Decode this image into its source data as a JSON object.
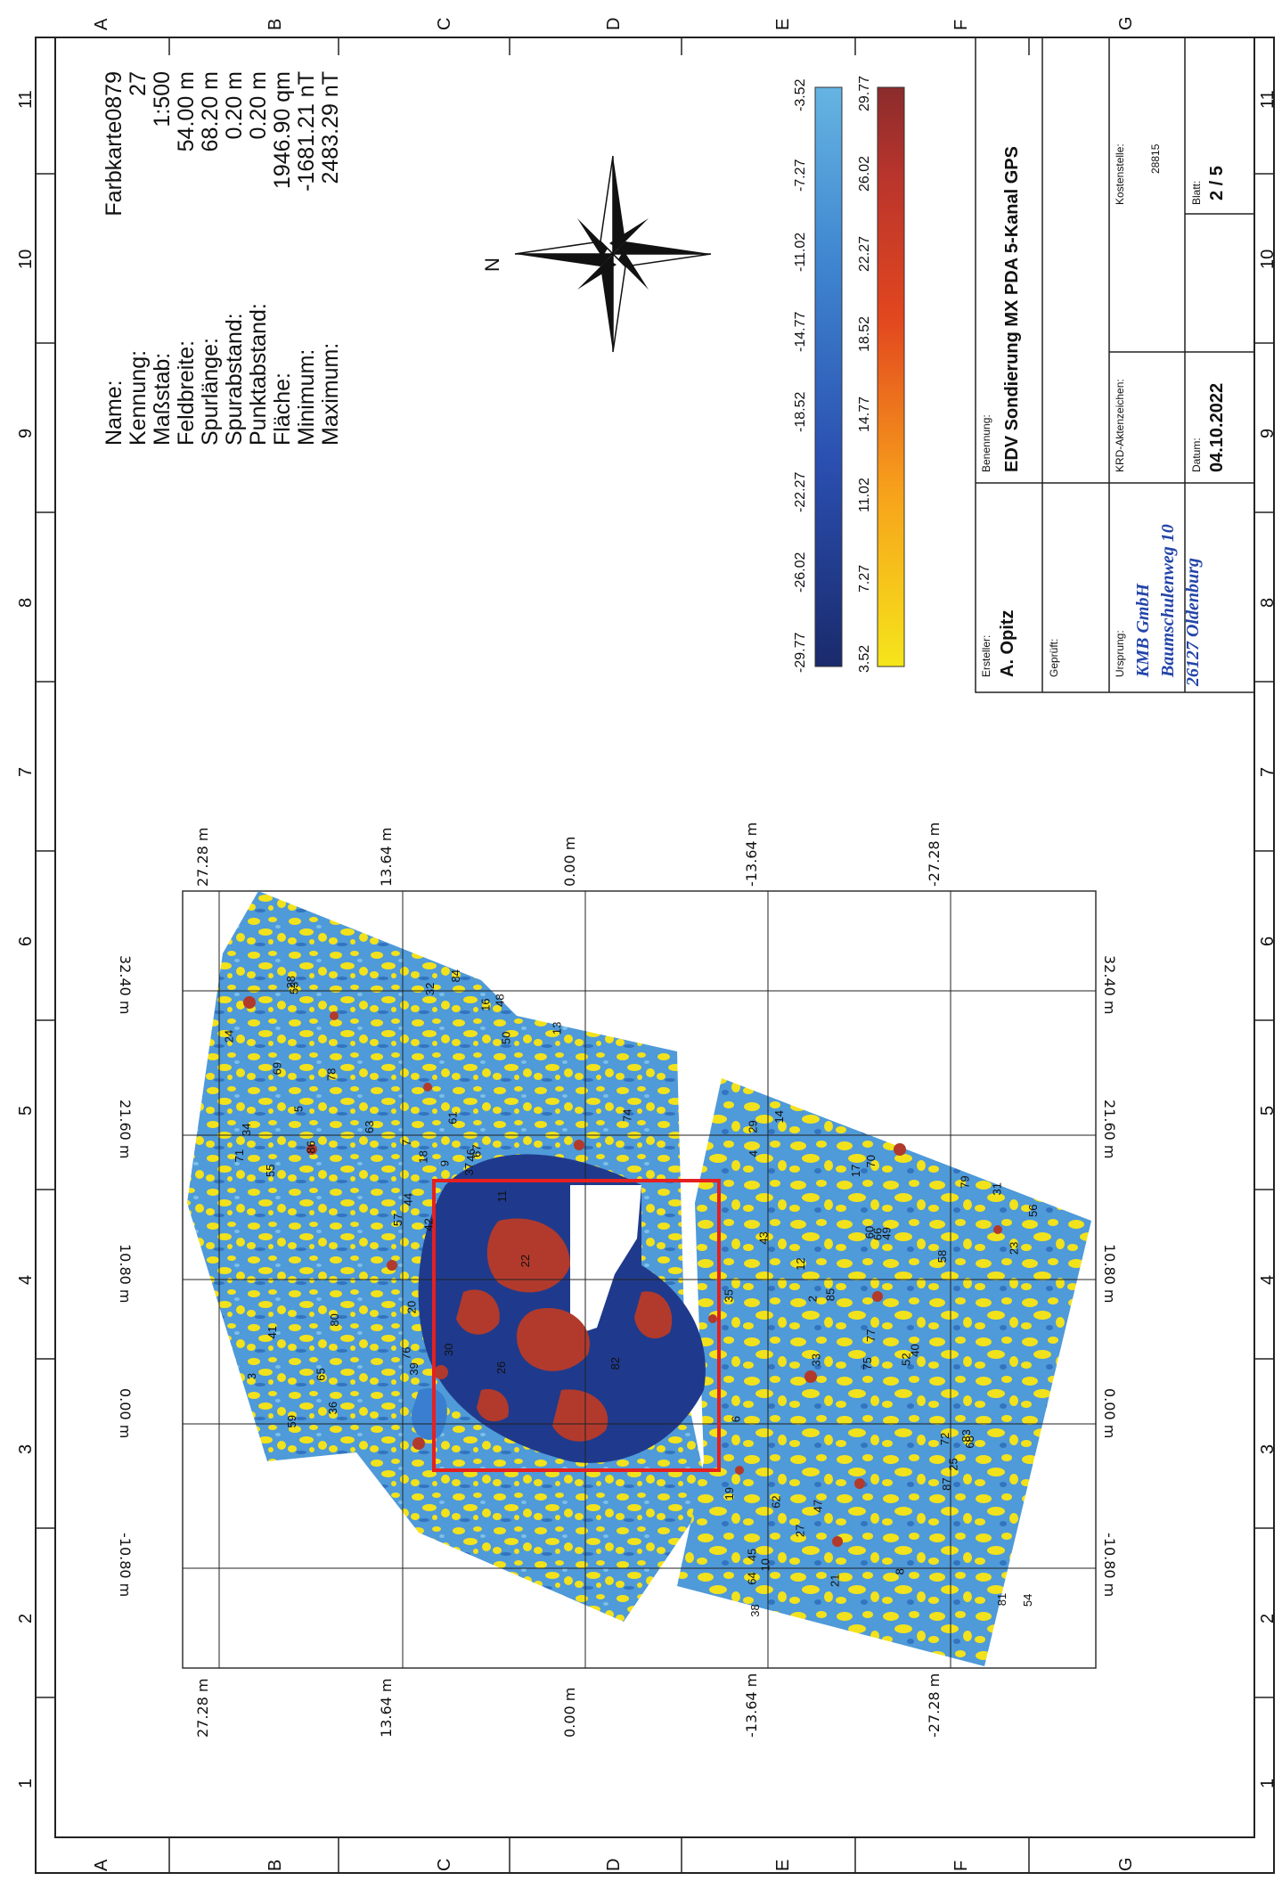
{
  "border": {
    "letters": [
      "A",
      "B",
      "C",
      "D",
      "E",
      "F",
      "G"
    ],
    "numbers": [
      "1",
      "2",
      "3",
      "4",
      "5",
      "6",
      "7",
      "8",
      "9",
      "10",
      "11"
    ]
  },
  "info": {
    "rows": [
      {
        "label": "Name:",
        "value": "Farbkarte0879"
      },
      {
        "label": "Kennung:",
        "value": "27"
      },
      {
        "label": "Maßstab:",
        "value": "1:500"
      },
      {
        "label": "Feldbreite:",
        "value": "54.00 m"
      },
      {
        "label": "Spurlänge:",
        "value": "68.20 m"
      },
      {
        "label": "Spurabstand:",
        "value": "0.20 m"
      },
      {
        "label": "Punktabstand:",
        "value": "0.20 m"
      },
      {
        "label": "Fläche:",
        "value": "1946.90 qm"
      },
      {
        "label": "Minimum:",
        "value": "-1681.21 nT"
      },
      {
        "label": "Maximum:",
        "value": "2483.29 nT"
      }
    ]
  },
  "compass": {
    "north_label": "N"
  },
  "scales": {
    "blue": {
      "ticks": [
        "-29.77",
        "-26.02",
        "-22.27",
        "-18.52",
        "-14.77",
        "-11.02",
        "-7.27",
        "-3.52"
      ],
      "colors": [
        "#1a2a6c",
        "#2a4fb0",
        "#3f86d0",
        "#66b4e2"
      ]
    },
    "red": {
      "ticks": [
        "3.52",
        "7.27",
        "11.02",
        "14.77",
        "18.52",
        "22.27",
        "26.02",
        "29.77"
      ],
      "colors": [
        "#f5e51b",
        "#f7a21b",
        "#e2471f",
        "#b8342c",
        "#8a2c2c"
      ]
    }
  },
  "title_block": {
    "ersteller_label": "Ersteller:",
    "ersteller": "A. Opitz",
    "geprueft_label": "Geprüft:",
    "ursprung_label": "Ursprung:",
    "firm_line1": "KMB GmbH",
    "firm_line2": "Baumschulenweg 10",
    "firm_line3": "26127 Oldenburg",
    "benennung_label": "Benennung:",
    "benennung": "EDV Sondierung MX PDA 5-Kanal GPS",
    "krd_label": "KRD-Aktenzeichen:",
    "kosten_label": "Kostenstelle:",
    "kosten": "28815",
    "datum_label": "Datum:",
    "datum": "04.10.2022",
    "blatt_label": "Blatt:",
    "blatt": "2 / 5"
  },
  "map_grid": {
    "y_labels": [
      "27.28 m",
      "13.64 m",
      "0.00 m",
      "-13.64 m",
      "-27.28 m"
    ],
    "x_labels": [
      "32.40 m",
      "21.60 m",
      "10.80 m",
      "0.00 m",
      "-10.80 m"
    ]
  },
  "anomalies": [
    "42",
    "43",
    "44",
    "45",
    "46",
    "47",
    "48",
    "49",
    "50",
    "52",
    "53",
    "54",
    "55",
    "56",
    "57",
    "58",
    "59",
    "60",
    "61",
    "62",
    "63",
    "64",
    "65",
    "66",
    "67",
    "68",
    "69",
    "70",
    "71",
    "72",
    "74",
    "75",
    "76",
    "77",
    "78",
    "79",
    "80",
    "81",
    "82",
    "83",
    "84",
    "85",
    "86",
    "87",
    "36",
    "35",
    "37",
    "38",
    "39",
    "40",
    "41",
    "23",
    "24",
    "25",
    "26",
    "27",
    "28",
    "29",
    "30",
    "31",
    "32",
    "33",
    "34",
    "12",
    "13",
    "14",
    "16",
    "17",
    "18",
    "19",
    "20",
    "21",
    "22",
    "2",
    "3",
    "4",
    "5",
    "6",
    "7",
    "8",
    "9",
    "10",
    "11"
  ],
  "colors": {
    "dark_blue": "#1f3a8c",
    "mid_blue": "#3a7fcf",
    "light_blue": "#6fb6e4",
    "yellow": "#f2e21c",
    "red": "#b13a2c",
    "highlight": "#e52020"
  }
}
